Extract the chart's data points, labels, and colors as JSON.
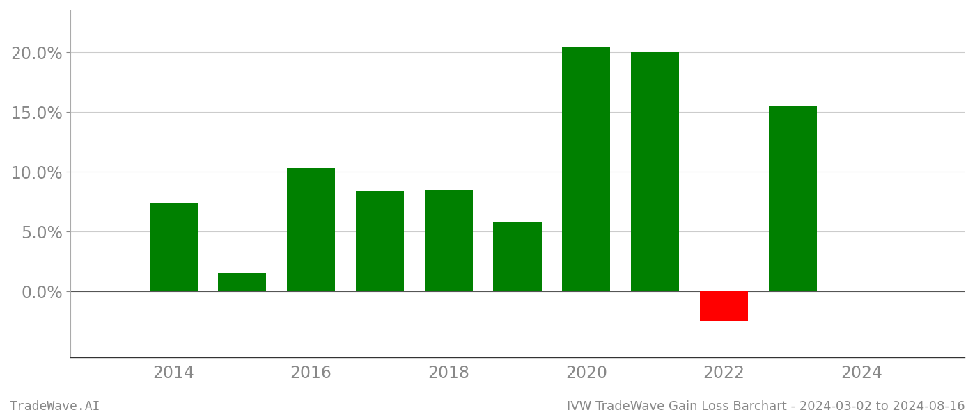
{
  "years": [
    2014,
    2015,
    2016,
    2017,
    2018,
    2019,
    2020,
    2021,
    2022,
    2023
  ],
  "values": [
    0.074,
    0.015,
    0.103,
    0.084,
    0.085,
    0.058,
    0.204,
    0.2,
    -0.025,
    0.155
  ],
  "bar_colors": [
    "#008000",
    "#008000",
    "#008000",
    "#008000",
    "#008000",
    "#008000",
    "#008000",
    "#008000",
    "#ff0000",
    "#008000"
  ],
  "background_color": "#ffffff",
  "grid_color": "#cccccc",
  "axis_label_color": "#888888",
  "footer_color": "#888888",
  "title_text": "IVW TradeWave Gain Loss Barchart - 2024-03-02 to 2024-08-16",
  "watermark_text": "TradeWave.AI",
  "ylim_min": -0.055,
  "ylim_max": 0.235,
  "yticks": [
    0.0,
    0.05,
    0.1,
    0.15,
    0.2
  ],
  "xtick_labels": [
    "2014",
    "2016",
    "2018",
    "2020",
    "2022",
    "2024"
  ],
  "xtick_positions": [
    2014,
    2016,
    2018,
    2020,
    2022,
    2024
  ],
  "xlim_min": 2012.5,
  "xlim_max": 2025.5,
  "bar_width": 0.7,
  "tick_fontsize": 17,
  "footer_fontsize": 13
}
